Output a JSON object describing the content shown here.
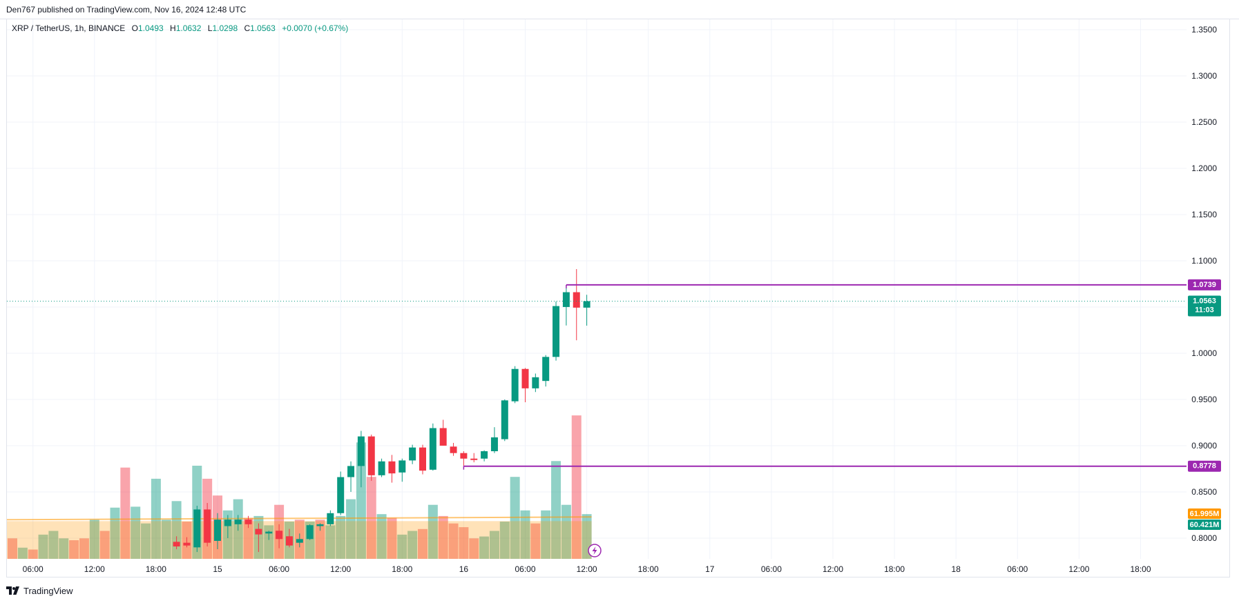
{
  "header": {
    "publisher": "Den767 published on TradingView.com, Nov 16, 2024 12:48 UTC"
  },
  "legend": {
    "symbol": "XRP / TetherUS, 1h, BINANCE",
    "open_label": "O",
    "open": "1.0493",
    "high_label": "H",
    "high": "1.0632",
    "low_label": "L",
    "low": "1.0298",
    "close_label": "C",
    "close": "1.0563",
    "change": "+0.0070 (+0.67%)"
  },
  "footer": {
    "brand": "TradingView",
    "logo_icon": "tradingview-logo-icon"
  },
  "colors": {
    "up": "#089981",
    "down": "#f23645",
    "level_line": "#9c27b0",
    "last_price": "#089981",
    "volume_ma": "#ff9800"
  },
  "chart_data": {
    "type": "candlestick",
    "title": "",
    "y_axis": {
      "position": "right",
      "range": [
        0.7875,
        1.3625
      ],
      "ticks": [
        "1.3500",
        "1.3000",
        "1.2500",
        "1.2000",
        "1.1500",
        "1.1000",
        "1.0500",
        "1.0000",
        "0.9500",
        "0.9000",
        "0.8500",
        "0.8000"
      ]
    },
    "x_axis": {
      "ticks": [
        {
          "label": "06:00",
          "index": 2
        },
        {
          "label": "12:00",
          "index": 8
        },
        {
          "label": "18:00",
          "index": 14
        },
        {
          "label": "15",
          "index": 20
        },
        {
          "label": "06:00",
          "index": 26
        },
        {
          "label": "12:00",
          "index": 32
        },
        {
          "label": "18:00",
          "index": 38
        },
        {
          "label": "16",
          "index": 44
        },
        {
          "label": "06:00",
          "index": 50
        },
        {
          "label": "12:00",
          "index": 56
        },
        {
          "label": "18:00",
          "index": 62
        },
        {
          "label": "17",
          "index": 68
        },
        {
          "label": "06:00",
          "index": 74
        },
        {
          "label": "12:00",
          "index": 80
        },
        {
          "label": "18:00",
          "index": 86
        },
        {
          "label": "18",
          "index": 92
        },
        {
          "label": "06:00",
          "index": 98
        },
        {
          "label": "12:00",
          "index": 104
        },
        {
          "label": "18:00",
          "index": 110
        }
      ]
    },
    "grid": true,
    "candles": [
      {
        "i": 16,
        "o": 0.796,
        "h": 0.802,
        "l": 0.788,
        "c": 0.791
      },
      {
        "i": 17,
        "o": 0.795,
        "h": 0.801,
        "l": 0.79,
        "c": 0.792
      },
      {
        "i": 18,
        "o": 0.79,
        "h": 0.835,
        "l": 0.785,
        "c": 0.831
      },
      {
        "i": 19,
        "o": 0.831,
        "h": 0.838,
        "l": 0.791,
        "c": 0.795
      },
      {
        "i": 20,
        "o": 0.797,
        "h": 0.827,
        "l": 0.788,
        "c": 0.82
      },
      {
        "i": 21,
        "o": 0.813,
        "h": 0.825,
        "l": 0.8,
        "c": 0.82
      },
      {
        "i": 22,
        "o": 0.815,
        "h": 0.825,
        "l": 0.808,
        "c": 0.82
      },
      {
        "i": 23,
        "o": 0.82,
        "h": 0.824,
        "l": 0.811,
        "c": 0.815
      },
      {
        "i": 24,
        "o": 0.81,
        "h": 0.816,
        "l": 0.785,
        "c": 0.804
      },
      {
        "i": 25,
        "o": 0.805,
        "h": 0.808,
        "l": 0.798,
        "c": 0.807
      },
      {
        "i": 26,
        "o": 0.808,
        "h": 0.815,
        "l": 0.789,
        "c": 0.799
      },
      {
        "i": 27,
        "o": 0.802,
        "h": 0.81,
        "l": 0.79,
        "c": 0.792
      },
      {
        "i": 28,
        "o": 0.795,
        "h": 0.805,
        "l": 0.79,
        "c": 0.799
      },
      {
        "i": 29,
        "o": 0.799,
        "h": 0.815,
        "l": 0.798,
        "c": 0.814
      },
      {
        "i": 30,
        "o": 0.813,
        "h": 0.816,
        "l": 0.808,
        "c": 0.815
      },
      {
        "i": 31,
        "o": 0.815,
        "h": 0.83,
        "l": 0.813,
        "c": 0.827
      },
      {
        "i": 32,
        "o": 0.827,
        "h": 0.872,
        "l": 0.825,
        "c": 0.866
      },
      {
        "i": 33,
        "o": 0.866,
        "h": 0.883,
        "l": 0.85,
        "c": 0.878
      },
      {
        "i": 34,
        "o": 0.878,
        "h": 0.916,
        "l": 0.855,
        "c": 0.91
      },
      {
        "i": 35,
        "o": 0.91,
        "h": 0.912,
        "l": 0.862,
        "c": 0.868
      },
      {
        "i": 36,
        "o": 0.868,
        "h": 0.886,
        "l": 0.866,
        "c": 0.883
      },
      {
        "i": 37,
        "o": 0.883,
        "h": 0.89,
        "l": 0.86,
        "c": 0.87
      },
      {
        "i": 38,
        "o": 0.871,
        "h": 0.886,
        "l": 0.861,
        "c": 0.884
      },
      {
        "i": 39,
        "o": 0.884,
        "h": 0.901,
        "l": 0.88,
        "c": 0.898
      },
      {
        "i": 40,
        "o": 0.898,
        "h": 0.901,
        "l": 0.869,
        "c": 0.873
      },
      {
        "i": 41,
        "o": 0.874,
        "h": 0.924,
        "l": 0.873,
        "c": 0.919
      },
      {
        "i": 42,
        "o": 0.919,
        "h": 0.928,
        "l": 0.9,
        "c": 0.9
      },
      {
        "i": 43,
        "o": 0.899,
        "h": 0.903,
        "l": 0.889,
        "c": 0.892
      },
      {
        "i": 44,
        "o": 0.892,
        "h": 0.894,
        "l": 0.878,
        "c": 0.886
      },
      {
        "i": 45,
        "o": 0.886,
        "h": 0.892,
        "l": 0.882,
        "c": 0.8845
      },
      {
        "i": 46,
        "o": 0.886,
        "h": 0.895,
        "l": 0.883,
        "c": 0.894
      },
      {
        "i": 47,
        "o": 0.894,
        "h": 0.92,
        "l": 0.892,
        "c": 0.909
      },
      {
        "i": 48,
        "o": 0.907,
        "h": 0.95,
        "l": 0.905,
        "c": 0.949
      },
      {
        "i": 49,
        "o": 0.948,
        "h": 0.986,
        "l": 0.946,
        "c": 0.983
      },
      {
        "i": 50,
        "o": 0.983,
        "h": 0.984,
        "l": 0.947,
        "c": 0.962
      },
      {
        "i": 51,
        "o": 0.962,
        "h": 0.978,
        "l": 0.958,
        "c": 0.974
      },
      {
        "i": 52,
        "o": 0.97,
        "h": 0.998,
        "l": 0.964,
        "c": 0.996
      },
      {
        "i": 53,
        "o": 0.996,
        "h": 1.056,
        "l": 0.992,
        "c": 1.051
      },
      {
        "i": 54,
        "o": 1.05,
        "h": 1.0739,
        "l": 1.03,
        "c": 1.066
      },
      {
        "i": 55,
        "o": 1.066,
        "h": 1.091,
        "l": 1.014,
        "c": 1.0493
      },
      {
        "i": 56,
        "o": 1.0493,
        "h": 1.0632,
        "l": 1.0298,
        "c": 1.0563
      }
    ],
    "volume": {
      "note": "relative bar heights (fraction of volume pane max)",
      "bars": [
        {
          "i": 0,
          "v": 0.22,
          "up": false
        },
        {
          "i": 1,
          "v": 0.12,
          "up": true
        },
        {
          "i": 2,
          "v": 0.1,
          "up": false
        },
        {
          "i": 3,
          "v": 0.26,
          "up": true
        },
        {
          "i": 4,
          "v": 0.3,
          "up": true
        },
        {
          "i": 5,
          "v": 0.22,
          "up": true
        },
        {
          "i": 6,
          "v": 0.2,
          "up": false
        },
        {
          "i": 7,
          "v": 0.22,
          "up": false
        },
        {
          "i": 8,
          "v": 0.42,
          "up": true
        },
        {
          "i": 9,
          "v": 0.3,
          "up": false
        },
        {
          "i": 10,
          "v": 0.55,
          "up": true
        },
        {
          "i": 11,
          "v": 0.98,
          "up": false
        },
        {
          "i": 12,
          "v": 0.56,
          "up": true
        },
        {
          "i": 13,
          "v": 0.38,
          "up": true
        },
        {
          "i": 14,
          "v": 0.86,
          "up": true
        },
        {
          "i": 15,
          "v": 0.42,
          "up": true
        },
        {
          "i": 16,
          "v": 0.62,
          "up": true
        },
        {
          "i": 17,
          "v": 0.4,
          "up": false
        },
        {
          "i": 18,
          "v": 1.0,
          "up": true
        },
        {
          "i": 19,
          "v": 0.86,
          "up": false
        },
        {
          "i": 20,
          "v": 0.68,
          "up": false
        },
        {
          "i": 21,
          "v": 0.52,
          "up": true
        },
        {
          "i": 22,
          "v": 0.64,
          "up": true
        },
        {
          "i": 23,
          "v": 0.44,
          "up": false
        },
        {
          "i": 24,
          "v": 0.46,
          "up": true
        },
        {
          "i": 25,
          "v": 0.36,
          "up": true
        },
        {
          "i": 26,
          "v": 0.58,
          "up": false
        },
        {
          "i": 27,
          "v": 0.4,
          "up": true
        },
        {
          "i": 28,
          "v": 0.42,
          "up": false
        },
        {
          "i": 29,
          "v": 0.4,
          "up": true
        },
        {
          "i": 30,
          "v": 0.42,
          "up": false
        },
        {
          "i": 31,
          "v": 0.36,
          "up": true
        },
        {
          "i": 32,
          "v": 0.46,
          "up": true
        },
        {
          "i": 33,
          "v": 0.64,
          "up": true
        },
        {
          "i": 34,
          "v": 1.25,
          "up": true
        },
        {
          "i": 35,
          "v": 0.88,
          "up": false
        },
        {
          "i": 36,
          "v": 0.48,
          "up": true
        },
        {
          "i": 37,
          "v": 0.44,
          "up": false
        },
        {
          "i": 38,
          "v": 0.26,
          "up": true
        },
        {
          "i": 39,
          "v": 0.3,
          "up": true
        },
        {
          "i": 40,
          "v": 0.32,
          "up": false
        },
        {
          "i": 41,
          "v": 0.58,
          "up": true
        },
        {
          "i": 42,
          "v": 0.46,
          "up": false
        },
        {
          "i": 43,
          "v": 0.38,
          "up": false
        },
        {
          "i": 44,
          "v": 0.34,
          "up": false
        },
        {
          "i": 45,
          "v": 0.22,
          "up": false
        },
        {
          "i": 46,
          "v": 0.24,
          "up": true
        },
        {
          "i": 47,
          "v": 0.3,
          "up": true
        },
        {
          "i": 48,
          "v": 0.4,
          "up": true
        },
        {
          "i": 49,
          "v": 0.88,
          "up": true
        },
        {
          "i": 50,
          "v": 0.52,
          "up": true
        },
        {
          "i": 51,
          "v": 0.38,
          "up": false
        },
        {
          "i": 52,
          "v": 0.52,
          "up": true
        },
        {
          "i": 53,
          "v": 1.05,
          "up": true
        },
        {
          "i": 54,
          "v": 0.58,
          "up": true
        },
        {
          "i": 55,
          "v": 1.54,
          "up": false
        },
        {
          "i": 56,
          "v": 0.48,
          "up": true
        }
      ],
      "ma_level": 0.42,
      "ma_label": "61.995M",
      "vol_label": "60.421M"
    },
    "levels": [
      {
        "value": 1.0739,
        "label": "1.0739",
        "from_index": 54
      },
      {
        "value": 0.8778,
        "label": "0.8778",
        "from_index": 44
      }
    ],
    "last_price": {
      "value": 1.0563,
      "label": "1.0563",
      "countdown": "11:03"
    }
  }
}
